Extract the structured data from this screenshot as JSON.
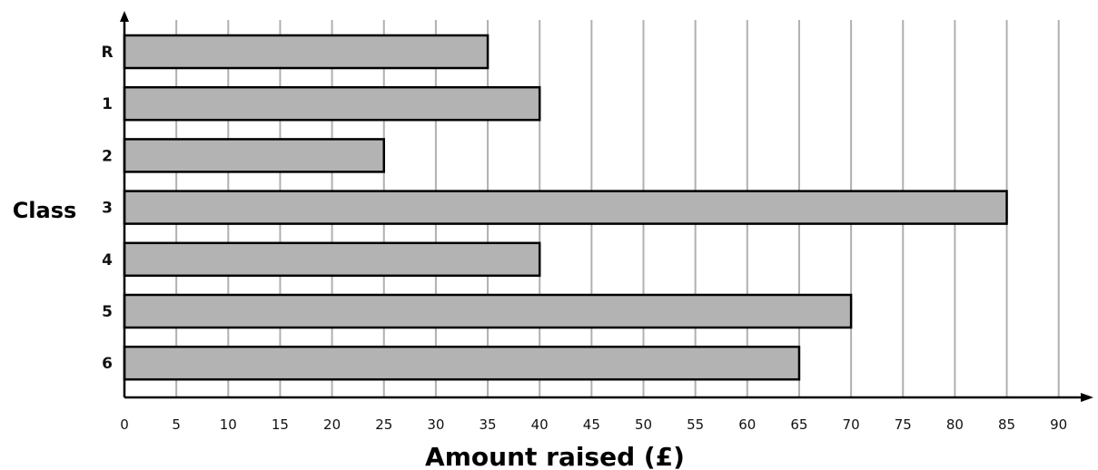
{
  "chart_data": {
    "type": "bar",
    "orientation": "horizontal",
    "categories": [
      "R",
      "1",
      "2",
      "3",
      "4",
      "5",
      "6"
    ],
    "values": [
      35,
      40,
      25,
      85,
      40,
      70,
      65
    ],
    "title": "",
    "xlabel": "Amount raised (£)",
    "ylabel": "Class",
    "xlim": [
      0,
      90
    ],
    "xticks": [
      "0",
      "5",
      "10",
      "15",
      "20",
      "25",
      "30",
      "35",
      "40",
      "45",
      "50",
      "55",
      "60",
      "65",
      "70",
      "75",
      "80",
      "85",
      "90"
    ],
    "grid": "vertical",
    "bar_color": "#b3b3b3",
    "bar_edge_color": "#000000",
    "grid_color": "#b0b0b0"
  }
}
